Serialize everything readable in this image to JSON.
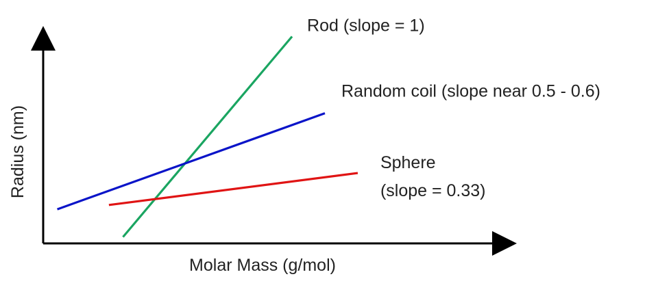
{
  "chart_data": {
    "type": "line",
    "xlabel": "Molar Mass (g/mol)",
    "ylabel": "Radius (nm)",
    "grid": false,
    "x_ticks": false,
    "y_ticks": false,
    "axis_arrows": true,
    "xlim": [
      0,
      10
    ],
    "ylim": [
      0,
      10
    ],
    "series": [
      {
        "key": "rod",
        "label_lines": [
          "Rod (slope = 1)"
        ],
        "color": "#1aa561",
        "x": [
          1.7,
          5.3
        ],
        "y": [
          0.3,
          9.7
        ]
      },
      {
        "key": "coil",
        "label_lines": [
          "Random coil (slope near 0.5 - 0.6)"
        ],
        "color": "#0a14c8",
        "x": [
          0.3,
          6.0
        ],
        "y": [
          1.6,
          6.1
        ]
      },
      {
        "key": "sphere",
        "label_lines": [
          "Sphere",
          "(slope = 0.33)"
        ],
        "color": "#e01414",
        "x": [
          1.4,
          6.7
        ],
        "y": [
          1.8,
          3.3
        ]
      }
    ]
  }
}
